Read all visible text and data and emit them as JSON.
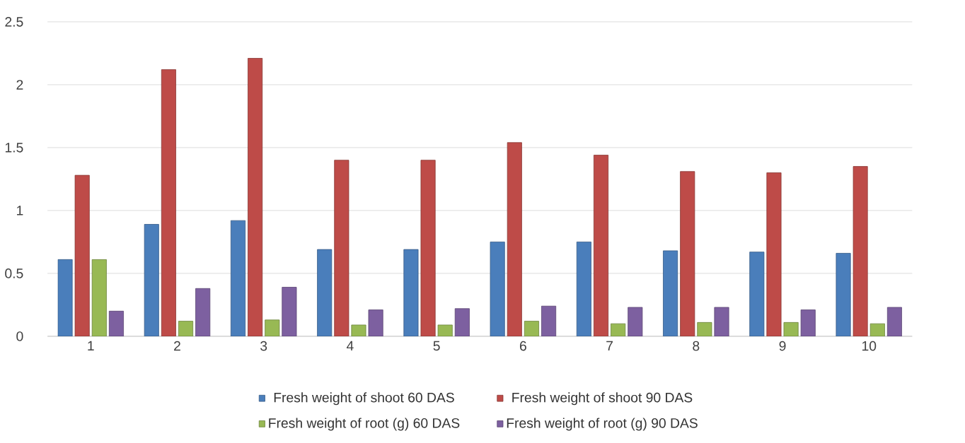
{
  "chart_data": {
    "type": "bar",
    "categories": [
      "1",
      "2",
      "3",
      "4",
      "5",
      "6",
      "7",
      "8",
      "9",
      "10"
    ],
    "series": [
      {
        "name": "Fresh weight of shoot  60 DAS",
        "color": "#4a7ebb",
        "values": [
          0.61,
          0.89,
          0.92,
          0.69,
          0.69,
          0.75,
          0.75,
          0.68,
          0.67,
          0.66
        ]
      },
      {
        "name": "Fresh weight of shoot  90 DAS",
        "color": "#be4b48",
        "values": [
          1.28,
          2.12,
          2.21,
          1.4,
          1.4,
          1.54,
          1.44,
          1.31,
          1.3,
          1.35
        ]
      },
      {
        "name": "Fresh weight of root (g) 60 DAS",
        "color": "#98b954",
        "values": [
          0.61,
          0.12,
          0.13,
          0.09,
          0.09,
          0.12,
          0.1,
          0.11,
          0.11,
          0.1
        ]
      },
      {
        "name": "Fresh weight of root (g) 90 DAS",
        "color": "#7d60a0",
        "values": [
          0.2,
          0.38,
          0.39,
          0.21,
          0.22,
          0.24,
          0.23,
          0.23,
          0.21,
          0.23
        ]
      }
    ],
    "ylim": [
      0,
      2.5
    ],
    "yticks": [
      0,
      0.5,
      1,
      1.5,
      2,
      2.5
    ],
    "grid": "y",
    "legend": "bottom"
  }
}
